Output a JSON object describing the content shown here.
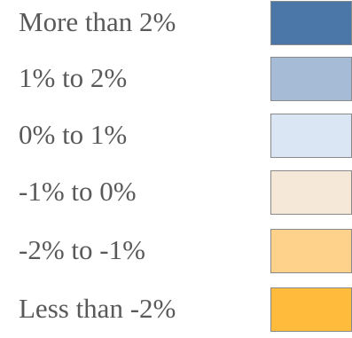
{
  "legend": {
    "items": [
      {
        "label": "More than 2%",
        "color": "#4a77a8"
      },
      {
        "label": "1% to 2%",
        "color": "#a5bbd6"
      },
      {
        "label": "0% to 1%",
        "color": "#dae6f3"
      },
      {
        "label": "-1% to 0%",
        "color": "#f5e8d9"
      },
      {
        "label": "-2% to -1%",
        "color": "#ffd28c"
      },
      {
        "label": "Less than -2%",
        "color": "#ffbb3b"
      }
    ]
  }
}
